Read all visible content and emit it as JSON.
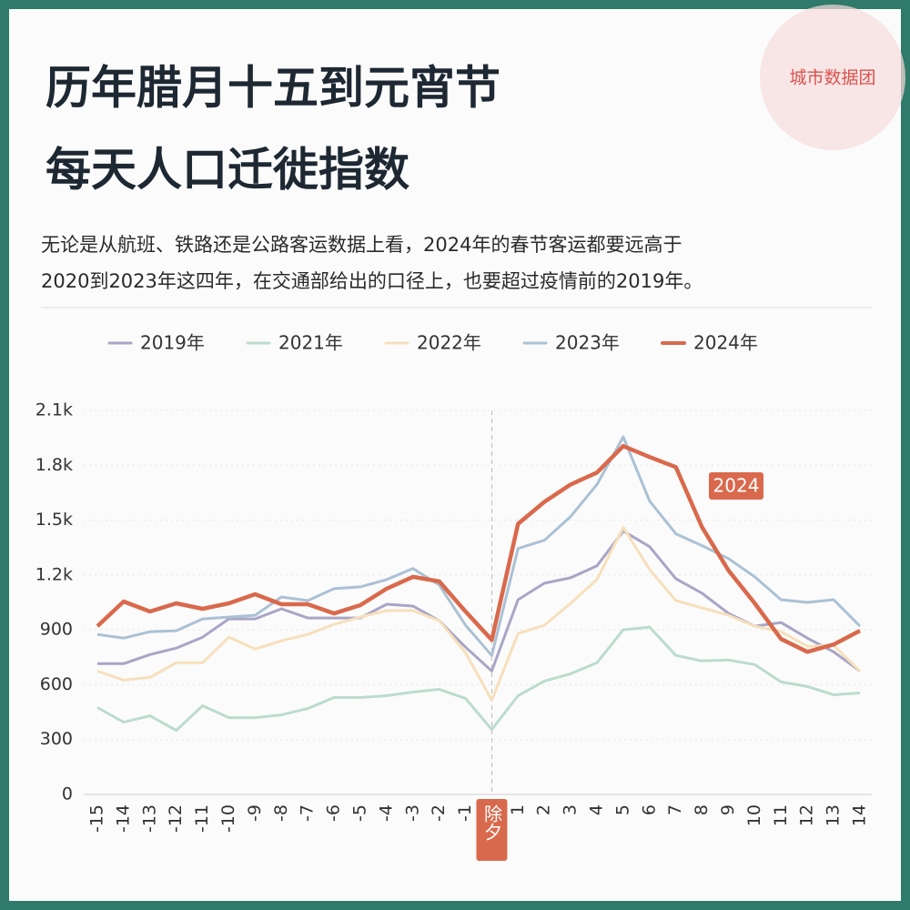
{
  "chart_data": {
    "type": "line",
    "title": [
      "历年腊月十五到元宵节",
      "每天人口迁徙指数"
    ],
    "subtitle": [
      "无论是从航班、铁路还是公路客运数据上看，2024年的春节客运都要远高于",
      "2020到2023年这四年，在交通部给出的口径上，也要超过疫情前的2019年。"
    ],
    "brand": "城市数据团",
    "annotation": "2024",
    "categories": [
      "-15",
      "-14",
      "-13",
      "-12",
      "-11",
      "-10",
      "-9",
      "-8",
      "-7",
      "-6",
      "-5",
      "-4",
      "-3",
      "-2",
      "-1",
      "除夕",
      "1",
      "2",
      "3",
      "4",
      "5",
      "6",
      "7",
      "8",
      "9",
      "10",
      "11",
      "12",
      "13",
      "14"
    ],
    "series": [
      {
        "name": "2019年",
        "color": "#a9a5c6",
        "values": [
          715,
          715,
          765,
          800,
          860,
          960,
          960,
          1015,
          965,
          965,
          965,
          1040,
          1030,
          950,
          805,
          675,
          1065,
          1155,
          1185,
          1250,
          1440,
          1355,
          1180,
          1100,
          990,
          920,
          940,
          855,
          780,
          675
        ]
      },
      {
        "name": "2021年",
        "color": "#bcdccb",
        "values": [
          475,
          395,
          430,
          350,
          485,
          420,
          420,
          435,
          470,
          530,
          530,
          540,
          560,
          575,
          525,
          355,
          540,
          620,
          660,
          720,
          900,
          915,
          760,
          730,
          735,
          710,
          615,
          590,
          545,
          555
        ]
      },
      {
        "name": "2022年",
        "color": "#f6e0bb",
        "values": [
          675,
          625,
          640,
          720,
          720,
          860,
          795,
          840,
          875,
          930,
          970,
          1005,
          1005,
          950,
          775,
          515,
          880,
          925,
          1045,
          1175,
          1460,
          1230,
          1060,
          1020,
          980,
          920,
          890,
          810,
          815,
          675
        ]
      },
      {
        "name": "2023年",
        "color": "#abc1d4",
        "values": [
          875,
          855,
          890,
          895,
          960,
          970,
          980,
          1080,
          1060,
          1125,
          1135,
          1175,
          1235,
          1145,
          925,
          760,
          1345,
          1390,
          1520,
          1695,
          1955,
          1605,
          1425,
          1360,
          1290,
          1190,
          1065,
          1050,
          1065,
          920
        ]
      },
      {
        "name": "2024年",
        "color": "#d9694c",
        "values": [
          920,
          1055,
          1000,
          1045,
          1015,
          1045,
          1095,
          1040,
          1040,
          990,
          1035,
          1125,
          1190,
          1165,
          1000,
          845,
          1480,
          1600,
          1695,
          1760,
          1905,
          1845,
          1790,
          1460,
          1225,
          1045,
          850,
          780,
          820,
          895
        ]
      }
    ],
    "ylim": [
      0,
      2100
    ],
    "yticks": [
      0,
      300,
      600,
      900,
      {
        "value": 1200,
        "label": "1.2k"
      },
      {
        "value": 1500,
        "label": "1.5k"
      },
      {
        "value": 1800,
        "label": "1.8k"
      },
      {
        "value": 2100,
        "label": "2.1k"
      }
    ],
    "grid": true
  }
}
